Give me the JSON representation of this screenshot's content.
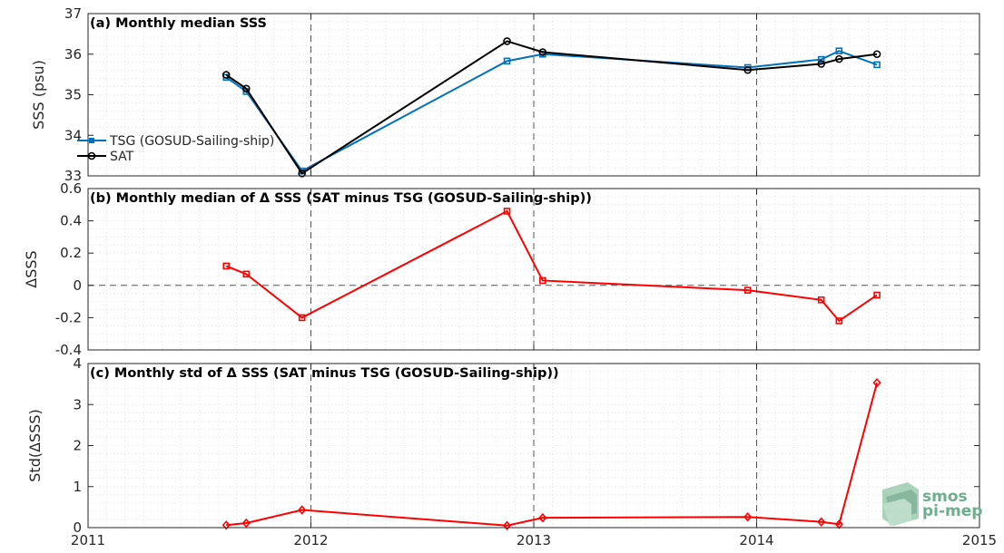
{
  "chart_data": [
    {
      "id": "a",
      "type": "line",
      "title": "(a) Monthly median SSS",
      "ylabel": "SSS (psu)",
      "xlim": [
        2011,
        2015
      ],
      "ylim": [
        33,
        37
      ],
      "yticks": [
        33,
        34,
        35,
        36,
        37
      ],
      "ytick_labels": [
        "33",
        "34",
        "35",
        "36",
        "37"
      ],
      "grid": true,
      "legend": "left-middle",
      "series": [
        {
          "name": "TSG (GOSUD-Sailing-ship)",
          "color": "#0072BD",
          "marker": "square",
          "x": [
            2011.62,
            2011.71,
            2011.96,
            2012.88,
            2013.04,
            2013.96,
            2014.29,
            2014.37,
            2014.54
          ],
          "y": [
            35.43,
            35.08,
            33.12,
            35.83,
            36.0,
            35.67,
            35.87,
            36.08,
            35.74
          ]
        },
        {
          "name": "SAT",
          "color": "#000000",
          "marker": "circle",
          "x": [
            2011.62,
            2011.71,
            2011.96,
            2012.88,
            2013.04,
            2013.96,
            2014.29,
            2014.37,
            2014.54
          ],
          "y": [
            35.49,
            35.15,
            33.06,
            36.32,
            36.05,
            35.61,
            35.76,
            35.88,
            36.0
          ]
        }
      ]
    },
    {
      "id": "b",
      "type": "line",
      "title": "(b) Monthly median of Δ SSS (SAT minus TSG (GOSUD-Sailing-ship))",
      "ylabel": "ΔSSS",
      "xlim": [
        2011,
        2015
      ],
      "ylim": [
        -0.4,
        0.6
      ],
      "yticks": [
        -0.4,
        -0.2,
        0,
        0.2,
        0.4,
        0.6
      ],
      "ytick_labels": [
        "-0.4",
        "-0.2",
        "0",
        "0.2",
        "0.4",
        "0.6"
      ],
      "grid": true,
      "zero_line": true,
      "series": [
        {
          "color": "#FF0000",
          "marker": "square",
          "x": [
            2011.62,
            2011.71,
            2011.96,
            2012.88,
            2013.04,
            2013.96,
            2014.29,
            2014.37,
            2014.54
          ],
          "y": [
            0.12,
            0.07,
            -0.2,
            0.46,
            0.03,
            -0.03,
            -0.09,
            -0.22,
            -0.06
          ]
        }
      ]
    },
    {
      "id": "c",
      "type": "line",
      "title": "(c) Monthly std of Δ SSS (SAT minus TSG (GOSUD-Sailing-ship))",
      "ylabel": "Std(ΔSSS)",
      "xlim": [
        2011,
        2015
      ],
      "ylim": [
        0,
        4
      ],
      "yticks": [
        0,
        1,
        2,
        3,
        4
      ],
      "ytick_labels": [
        "0",
        "1",
        "2",
        "3",
        "4"
      ],
      "xticks": [
        2011,
        2012,
        2013,
        2014,
        2015
      ],
      "xtick_labels": [
        "2011",
        "2012",
        "2013",
        "2014",
        "2015"
      ],
      "grid": true,
      "series": [
        {
          "color": "#FF0000",
          "marker": "diamond",
          "x": [
            2011.62,
            2011.71,
            2011.96,
            2012.88,
            2013.04,
            2013.96,
            2014.29,
            2014.37,
            2014.54
          ],
          "y": [
            0.06,
            0.11,
            0.43,
            0.05,
            0.24,
            0.26,
            0.14,
            0.08,
            3.53
          ]
        }
      ]
    }
  ],
  "year_lines": [
    2012,
    2013,
    2014
  ],
  "logo": {
    "line1": "smos",
    "line2": "pi-mep",
    "color": "#6fae8c"
  }
}
